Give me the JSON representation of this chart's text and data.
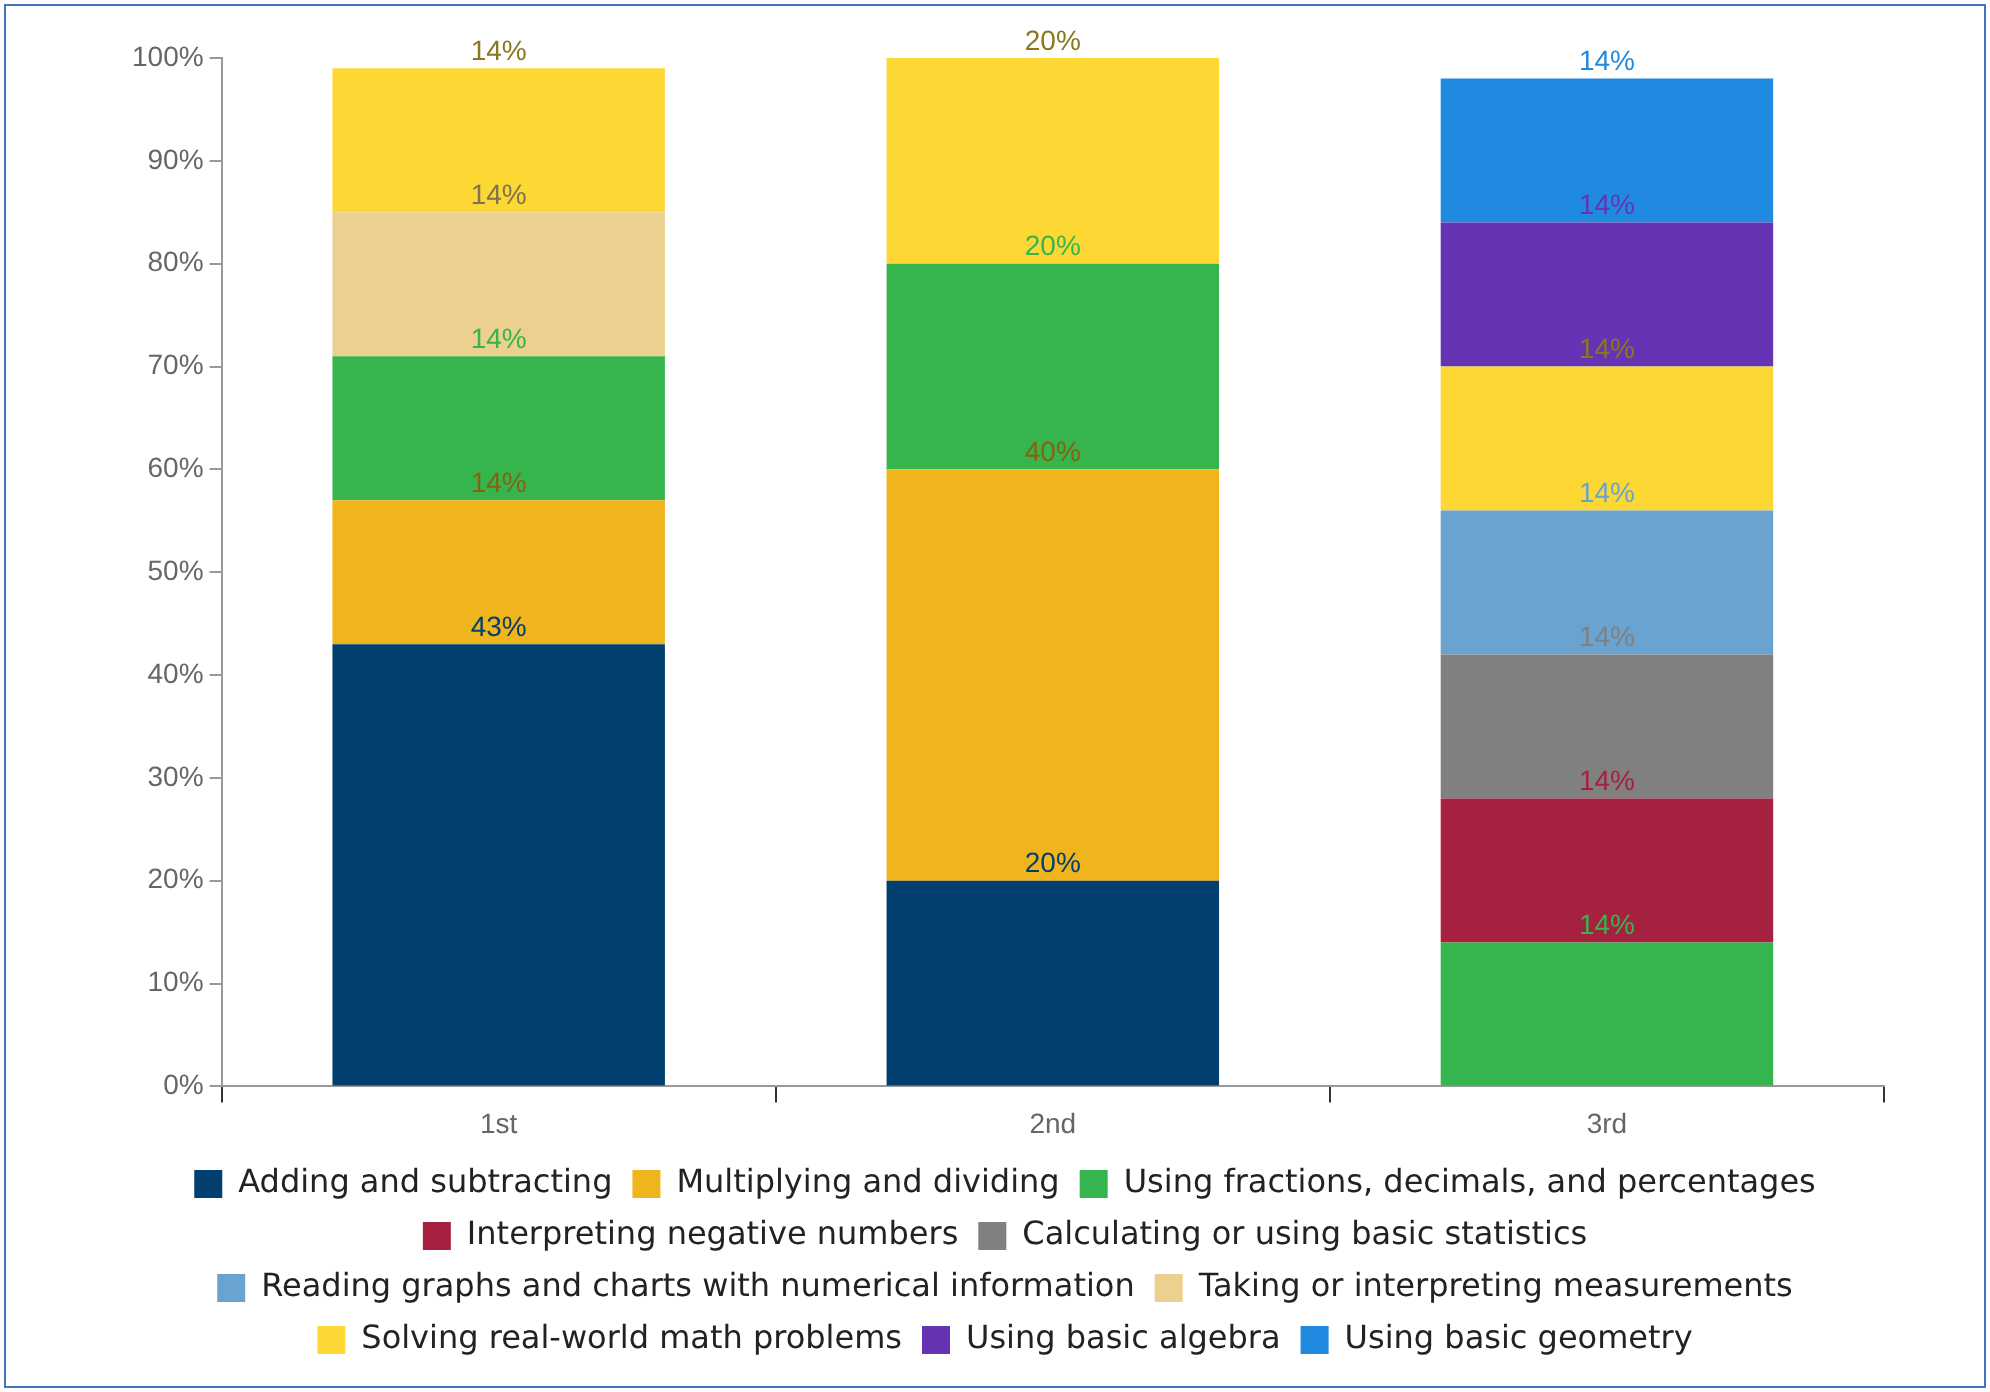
{
  "chart_data": {
    "type": "bar",
    "stacked": true,
    "categories": [
      "1st",
      "2nd",
      "3rd"
    ],
    "series": [
      {
        "name": "Adding and subtracting",
        "color": "#003f6e",
        "values": [
          43,
          20,
          null
        ],
        "value_labels": [
          "43%",
          "20%",
          null
        ]
      },
      {
        "name": "Multiplying and dividing",
        "color": "#f0b41c",
        "values": [
          14,
          40,
          null
        ],
        "value_labels": [
          "14%",
          "40%",
          null
        ]
      },
      {
        "name": "Using fractions, decimals, and percentages",
        "color": "#36b54e",
        "values": [
          14,
          20,
          14
        ],
        "value_labels": [
          "14%",
          "20%",
          "14%"
        ]
      },
      {
        "name": "Interpreting negative numbers",
        "color": "#a6213f",
        "values": [
          null,
          null,
          14
        ],
        "value_labels": [
          null,
          null,
          "14%"
        ]
      },
      {
        "name": "Calculating or using basic statistics",
        "color": "#808080",
        "values": [
          null,
          null,
          14
        ],
        "value_labels": [
          null,
          null,
          "14%"
        ]
      },
      {
        "name": "Reading graphs and charts with numerical information",
        "color": "#6aa3d0",
        "values": [
          null,
          null,
          14
        ],
        "value_labels": [
          null,
          null,
          "14%"
        ]
      },
      {
        "name": "Taking or interpreting measurements",
        "color": "#ebd08f",
        "values": [
          14,
          null,
          null
        ],
        "value_labels": [
          "14%",
          null,
          null
        ]
      },
      {
        "name": "Solving real-world math problems",
        "color": "#fdd835",
        "values": [
          14,
          20,
          14
        ],
        "value_labels": [
          "14%",
          "20%",
          "14%"
        ]
      },
      {
        "name": "Using basic algebra",
        "color": "#6534b5",
        "values": [
          null,
          null,
          14
        ],
        "value_labels": [
          null,
          null,
          "14%"
        ]
      },
      {
        "name": "Using basic geometry",
        "color": "#1f8ae0",
        "values": [
          null,
          null,
          14
        ],
        "value_labels": [
          null,
          null,
          "14%"
        ]
      }
    ],
    "ylim": [
      0,
      100
    ],
    "yticks": [
      {
        "value": 0,
        "label": "0%"
      },
      {
        "value": 10,
        "label": "10%"
      },
      {
        "value": 20,
        "label": "20%"
      },
      {
        "value": 30,
        "label": "30%"
      },
      {
        "value": 40,
        "label": "40%"
      },
      {
        "value": 50,
        "label": "50%"
      },
      {
        "value": 60,
        "label": "60%"
      },
      {
        "value": 70,
        "label": "70%"
      },
      {
        "value": 80,
        "label": "80%"
      },
      {
        "value": 90,
        "label": "90%"
      },
      {
        "value": 100,
        "label": "100%"
      }
    ],
    "grid": false,
    "legend": "bottom"
  }
}
